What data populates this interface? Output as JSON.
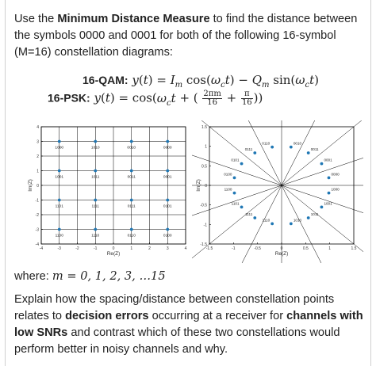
{
  "question": {
    "intro_pre": "Use the ",
    "intro_bold": "Minimum Distance Measure",
    "intro_post": " to find the distance between the symbols 0000 and 0001 for both of the following 16-symbol (M=16) constellation diagrams:"
  },
  "equations": {
    "qam_label": "16-QAM:",
    "psk_label": "16-PSK:",
    "psk_num": "2πm",
    "psk_den": "16",
    "psk_num2": "π",
    "psk_den2": "16"
  },
  "where": {
    "label": "where: ",
    "expr": "m = 0, 1, 2, 3, …15"
  },
  "explain": {
    "p1": "Explain how the spacing/distance between constellation points relates to ",
    "b1": "decision errors",
    "p2": " occurring at a receiver for ",
    "b2": "channels with low SNRs",
    "p3": " and contrast which of these two constellations would perform better in noisy channels and why."
  },
  "colors": {
    "point": "#1f77b4",
    "grid": "#000000",
    "text": "#222222"
  },
  "chart_data": [
    {
      "type": "scatter",
      "title": "",
      "xlabel": "Re(Z)",
      "ylabel": "Im(Z)",
      "xlim": [
        -4,
        4
      ],
      "ylim": [
        -4,
        4
      ],
      "xticks": [
        -4,
        -3,
        -2,
        -1,
        0,
        1,
        2,
        3,
        4
      ],
      "yticks": [
        -4,
        -3,
        -2,
        -1,
        0,
        1,
        2,
        3,
        4
      ],
      "grid": true,
      "points": [
        {
          "x": -3,
          "y": 3,
          "label": "1000"
        },
        {
          "x": -1,
          "y": 3,
          "label": "1010"
        },
        {
          "x": 1,
          "y": 3,
          "label": "0010"
        },
        {
          "x": 3,
          "y": 3,
          "label": "0000"
        },
        {
          "x": -3,
          "y": 1,
          "label": "1001"
        },
        {
          "x": -1,
          "y": 1,
          "label": "1011"
        },
        {
          "x": 1,
          "y": 1,
          "label": "0011"
        },
        {
          "x": 3,
          "y": 1,
          "label": "0001"
        },
        {
          "x": -3,
          "y": -1,
          "label": "1101"
        },
        {
          "x": -1,
          "y": -1,
          "label": "1111"
        },
        {
          "x": 1,
          "y": -1,
          "label": "0111"
        },
        {
          "x": 3,
          "y": -1,
          "label": "0101"
        },
        {
          "x": -3,
          "y": -3,
          "label": "1100"
        },
        {
          "x": -1,
          "y": -3,
          "label": "1110"
        },
        {
          "x": 1,
          "y": -3,
          "label": "0110"
        },
        {
          "x": 3,
          "y": -3,
          "label": "0100"
        }
      ]
    },
    {
      "type": "scatter",
      "title": "",
      "xlabel": "Re(Z)",
      "ylabel": "Im(Z)",
      "xlim": [
        -1.5,
        1.5
      ],
      "ylim": [
        -1.5,
        1.5
      ],
      "xticks": [
        -1.5,
        -1,
        -0.5,
        0,
        0.5,
        1,
        1.5
      ],
      "yticks": [
        -1.5,
        -1,
        -0.5,
        0,
        0.5,
        1,
        1.5
      ],
      "grid": false,
      "radial_lines": 16,
      "points": [
        {
          "m": 0,
          "label": "0000"
        },
        {
          "m": 1,
          "label": "0001"
        },
        {
          "m": 2,
          "label": "0011"
        },
        {
          "m": 3,
          "label": "0010"
        },
        {
          "m": 4,
          "label": "0110"
        },
        {
          "m": 5,
          "label": "0111"
        },
        {
          "m": 6,
          "label": "0101"
        },
        {
          "m": 7,
          "label": "0100"
        },
        {
          "m": 8,
          "label": "1100"
        },
        {
          "m": 9,
          "label": "1101"
        },
        {
          "m": 10,
          "label": "1111"
        },
        {
          "m": 11,
          "label": "1110"
        },
        {
          "m": 12,
          "label": "1010"
        },
        {
          "m": 13,
          "label": "1011"
        },
        {
          "m": 14,
          "label": "1001"
        },
        {
          "m": 15,
          "label": "1000"
        }
      ]
    }
  ]
}
